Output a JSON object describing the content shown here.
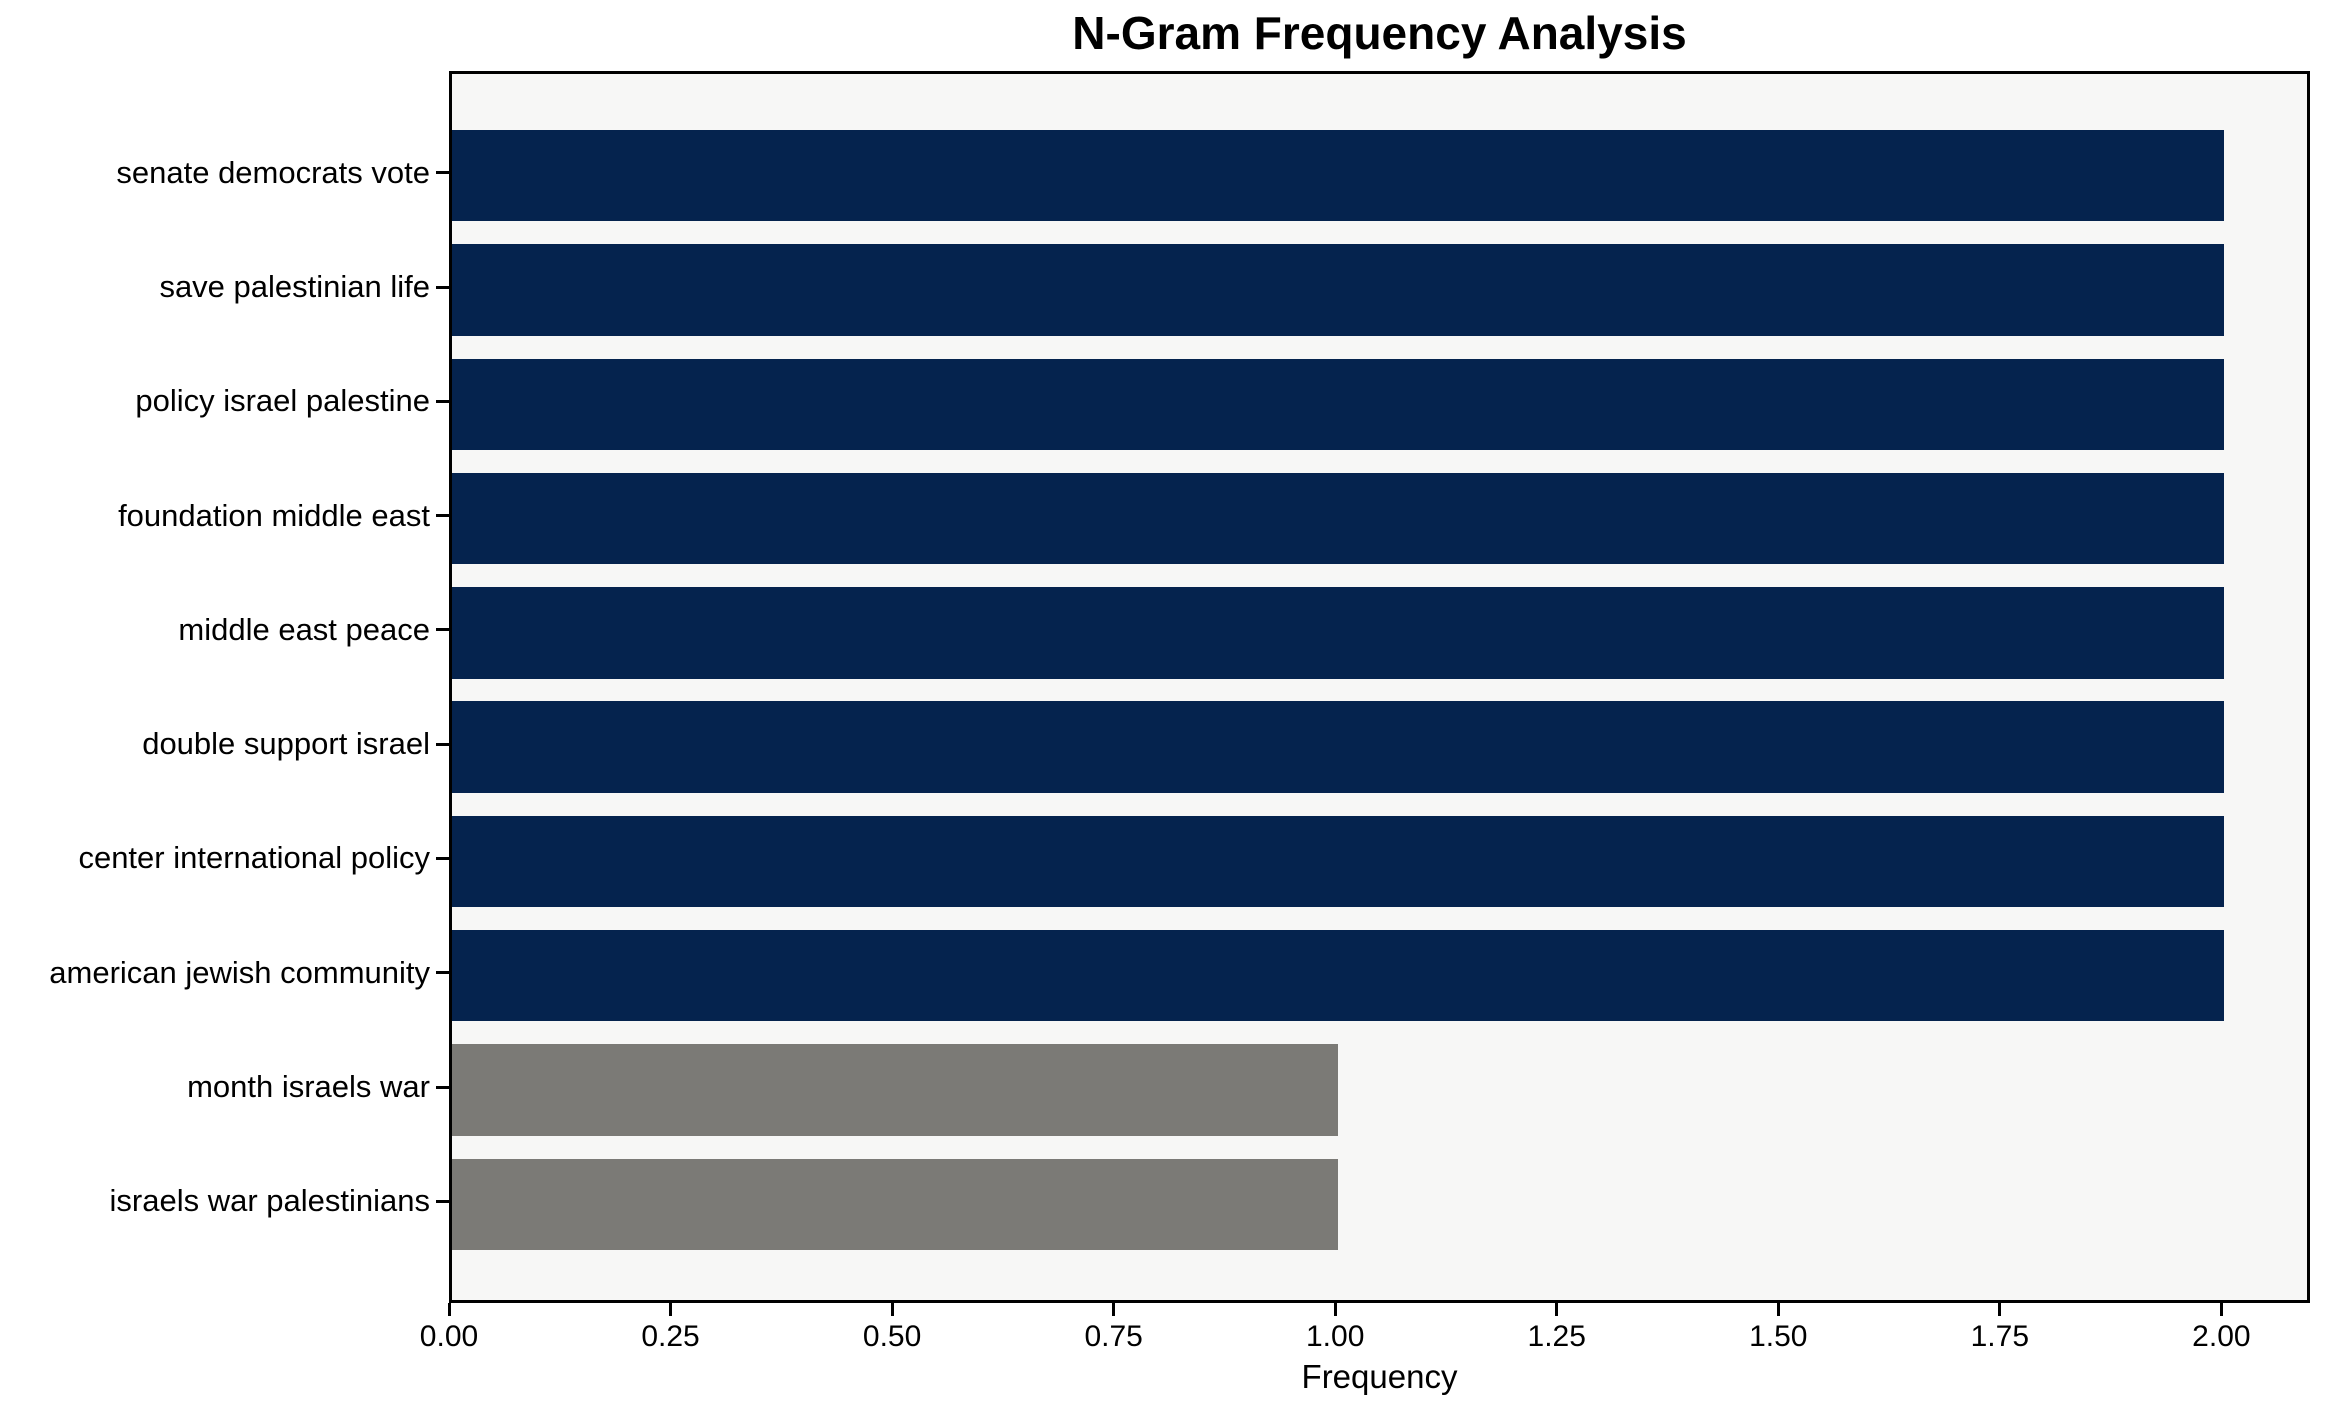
{
  "chart_data": {
    "type": "bar",
    "orientation": "horizontal",
    "title": "N-Gram Frequency Analysis",
    "xlabel": "Frequency",
    "ylabel": "",
    "categories": [
      "senate democrats vote",
      "save palestinian life",
      "policy israel palestine",
      "foundation middle east",
      "middle east peace",
      "double support israel",
      "center international policy",
      "american jewish community",
      "month israels war",
      "israels war palestinians"
    ],
    "values": [
      2,
      2,
      2,
      2,
      2,
      2,
      2,
      2,
      1,
      1
    ],
    "bar_colors": [
      "#05234e",
      "#05234e",
      "#05234e",
      "#05234e",
      "#05234e",
      "#05234e",
      "#05234e",
      "#05234e",
      "#7b7a76",
      "#7b7a76"
    ],
    "xlim": [
      0,
      2.1
    ],
    "x_tick_values": [
      0,
      0.25,
      0.5,
      0.75,
      1.0,
      1.25,
      1.5,
      1.75,
      2.0
    ],
    "x_tick_labels": [
      "0.00",
      "0.25",
      "0.50",
      "0.75",
      "1.00",
      "1.25",
      "1.50",
      "1.75",
      "2.00"
    ],
    "grid": false,
    "legend_position": "none",
    "colors": {
      "navy_bar": "#05234e",
      "gray_bar": "#7b7a76",
      "plot_background": "#f7f7f6",
      "figure_background": "#ffffff",
      "spine": "#000000",
      "text": "#000000"
    }
  }
}
